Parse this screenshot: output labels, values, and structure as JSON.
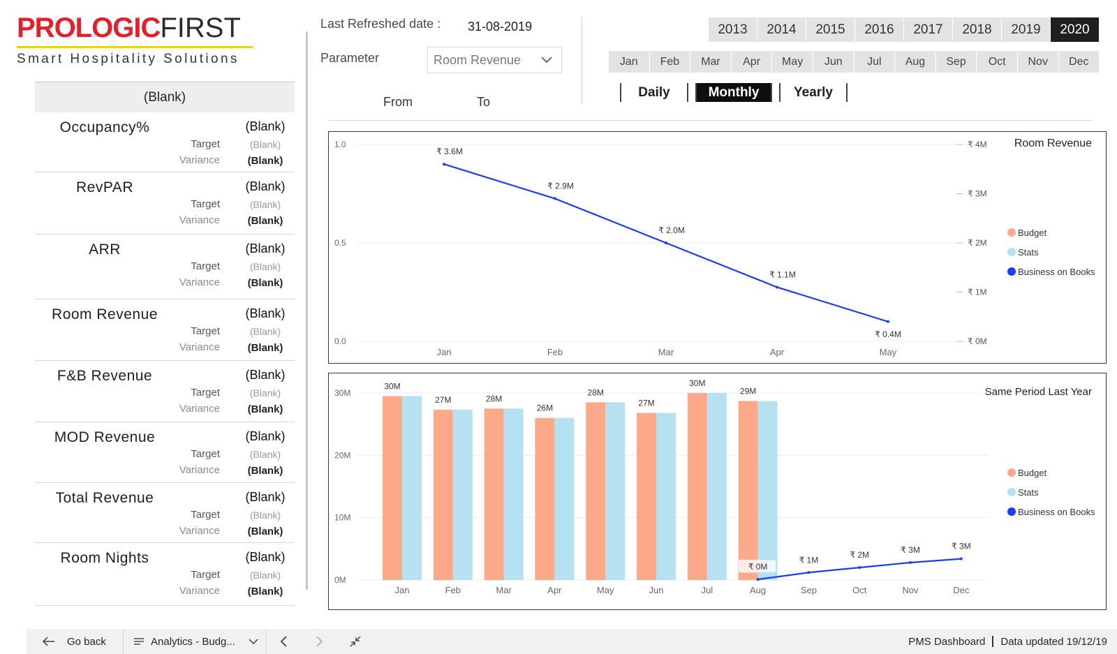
{
  "logo": {
    "brand_red": "PROLOGIC",
    "brand_black": "FIRST",
    "tagline": "Smart Hospitality Solutions"
  },
  "kpi_panel": {
    "header": "(Blank)",
    "target_label": "Target",
    "variance_label": "Variance",
    "cards": [
      {
        "name": "Occupancy%",
        "value": "(Blank)",
        "target": "(Blank)",
        "variance": "(Blank)"
      },
      {
        "name": "RevPAR",
        "value": "(Blank)",
        "target": "(Blank)",
        "variance": "(Blank)"
      },
      {
        "name": "ARR",
        "value": "(Blank)",
        "target": "(Blank)",
        "variance": "(Blank)"
      },
      {
        "name": "Room Revenue",
        "value": "(Blank)",
        "target": "(Blank)",
        "variance": "(Blank)"
      },
      {
        "name": "F&B Revenue",
        "value": "(Blank)",
        "target": "(Blank)",
        "variance": "(Blank)"
      },
      {
        "name": "MOD Revenue",
        "value": "(Blank)",
        "target": "(Blank)",
        "variance": "(Blank)"
      },
      {
        "name": "Total Revenue",
        "value": "(Blank)",
        "target": "(Blank)",
        "variance": "(Blank)"
      },
      {
        "name": "Room Nights",
        "value": "(Blank)",
        "target": "(Blank)",
        "variance": "(Blank)"
      }
    ]
  },
  "controls": {
    "last_refreshed_label": "Last Refreshed date :",
    "last_refreshed_value": "31-08-2019",
    "parameter_label": "Parameter",
    "parameter_value": "Room Revenue",
    "from_label": "From",
    "to_label": "To",
    "years": [
      "2013",
      "2014",
      "2015",
      "2016",
      "2017",
      "2018",
      "2019",
      "2020"
    ],
    "active_year": "2020",
    "months": [
      "Jan",
      "Feb",
      "Mar",
      "Apr",
      "May",
      "Jun",
      "Jul",
      "Aug",
      "Sep",
      "Oct",
      "Nov",
      "Dec"
    ],
    "periods": [
      "Daily",
      "Monthly",
      "Yearly"
    ],
    "active_period": "Monthly"
  },
  "legend": {
    "budget": "Budget",
    "stats": "Stats",
    "bob": "Business on Books"
  },
  "colors": {
    "budget": "#fca98a",
    "stats": "#b5e1f0",
    "bob": "#1a3ef0",
    "brand_red": "#e4202a",
    "brand_yellow": "#f2d100"
  },
  "chart_data": [
    {
      "type": "line",
      "title": "Room Revenue",
      "categories": [
        "Jan",
        "Feb",
        "Mar",
        "Apr",
        "May"
      ],
      "left_axis_ticks": [
        "0.0",
        "0.5",
        "1.0"
      ],
      "left_ylim": [
        0,
        1
      ],
      "right_axis_ticks": [
        "₹ 0M",
        "₹ 1M",
        "₹ 2M",
        "₹ 3M",
        "₹ 4M"
      ],
      "right_ylim": [
        0,
        4
      ],
      "legend_position": "right",
      "series": [
        {
          "name": "Business on Books",
          "values": [
            3.6,
            2.9,
            2.0,
            1.1,
            0.4
          ],
          "labels": [
            "₹ 3.6M",
            "₹ 2.9M",
            "₹ 2.0M",
            "₹ 1.1M",
            "₹ 0.4M"
          ]
        }
      ]
    },
    {
      "type": "bar",
      "title": "Same Period Last Year",
      "categories": [
        "Jan",
        "Feb",
        "Mar",
        "Apr",
        "May",
        "Jun",
        "Jul",
        "Aug",
        "Sep",
        "Oct",
        "Nov",
        "Dec"
      ],
      "y_axis_ticks": [
        "0M",
        "10M",
        "20M",
        "30M"
      ],
      "ylim": [
        0,
        30
      ],
      "legend_position": "right",
      "series": [
        {
          "name": "Budget",
          "values": [
            29.5,
            27.3,
            27.5,
            26.0,
            28.5,
            26.8,
            30.0,
            28.7,
            null,
            null,
            null,
            null
          ]
        },
        {
          "name": "Stats",
          "values": [
            29.5,
            27.3,
            27.5,
            26.0,
            28.5,
            26.8,
            30.0,
            28.7,
            null,
            null,
            null,
            null
          ]
        },
        {
          "name": "Business on Books",
          "values": [
            null,
            null,
            null,
            null,
            null,
            null,
            null,
            0.1,
            1.2,
            2.0,
            2.8,
            3.4
          ]
        }
      ],
      "bar_labels": [
        "30M",
        "27M",
        "28M",
        "26M",
        "28M",
        "27M",
        "30M",
        "29M",
        "",
        "",
        "",
        ""
      ],
      "line_labels": [
        "",
        "",
        "",
        "",
        "",
        "",
        "",
        "₹ 0M",
        "₹ 1M",
        "₹ 2M",
        "₹ 3M",
        "₹ 3M"
      ]
    }
  ],
  "bottom_bar": {
    "go_back": "Go back",
    "page_name": "Analytics - Budg...",
    "report_name": "PMS Dashboard",
    "data_updated": "Data updated 19/12/19"
  }
}
